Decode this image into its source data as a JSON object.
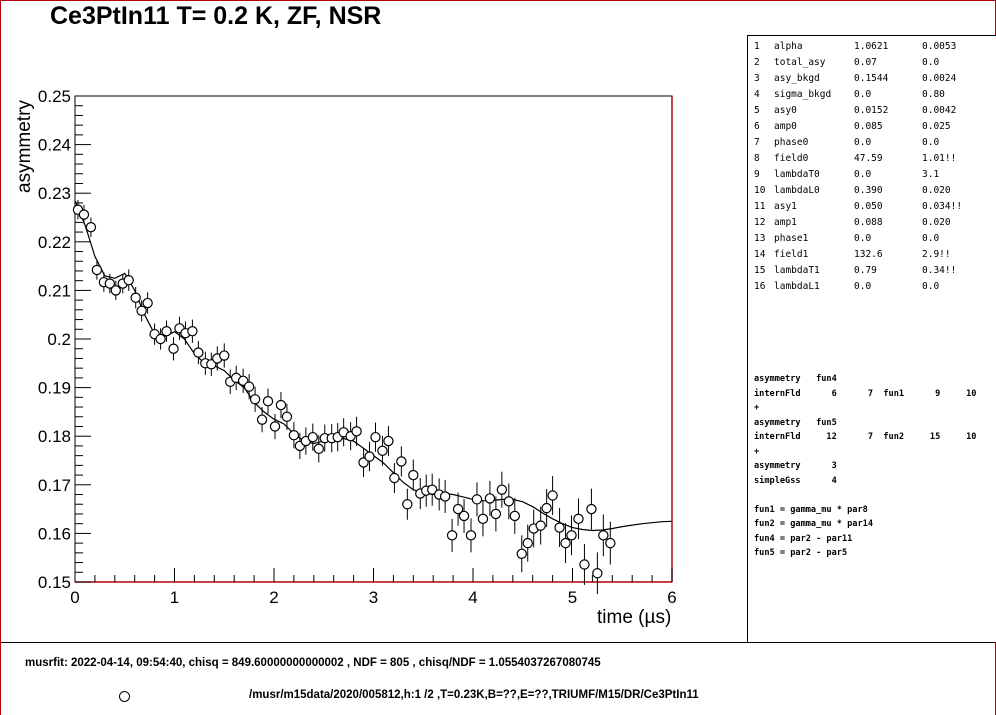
{
  "title": "Ce3PtIn11 T= 0.2 K, ZF, NSR",
  "chart_data": {
    "type": "scatter",
    "xlabel": "time (µs)",
    "ylabel": "asymmetry",
    "xlim": [
      0,
      6
    ],
    "ylim": [
      0.15,
      0.25
    ],
    "xticks": [
      "0",
      "1",
      "2",
      "3",
      "4",
      "5",
      "6"
    ],
    "yticks": [
      "0.15",
      "0.16",
      "0.17",
      "0.18",
      "0.19",
      "0.2",
      "0.21",
      "0.22",
      "0.23",
      "0.24",
      "0.25"
    ],
    "series": [
      {
        "name": "/musr/m15data/2020/005812,h:1 /2 ,T=0.23K,B=??,E=??,TRIUMF/M15/DR/Ce3PtIn11",
        "points": [
          {
            "x": 0.03,
            "y": 0.2266,
            "err": 0.002
          },
          {
            "x": 0.09,
            "y": 0.2256,
            "err": 0.002
          },
          {
            "x": 0.16,
            "y": 0.223,
            "err": 0.002
          },
          {
            "x": 0.22,
            "y": 0.2142,
            "err": 0.002
          },
          {
            "x": 0.29,
            "y": 0.2117,
            "err": 0.002
          },
          {
            "x": 0.35,
            "y": 0.2114,
            "err": 0.002
          },
          {
            "x": 0.41,
            "y": 0.21,
            "err": 0.002
          },
          {
            "x": 0.48,
            "y": 0.2114,
            "err": 0.002
          },
          {
            "x": 0.54,
            "y": 0.2121,
            "err": 0.0022
          },
          {
            "x": 0.61,
            "y": 0.2085,
            "err": 0.0022
          },
          {
            "x": 0.67,
            "y": 0.2058,
            "err": 0.0022
          },
          {
            "x": 0.73,
            "y": 0.2074,
            "err": 0.0022
          },
          {
            "x": 0.8,
            "y": 0.201,
            "err": 0.0022
          },
          {
            "x": 0.86,
            "y": 0.2,
            "err": 0.0022
          },
          {
            "x": 0.92,
            "y": 0.2016,
            "err": 0.0022
          },
          {
            "x": 0.99,
            "y": 0.198,
            "err": 0.0024
          },
          {
            "x": 1.05,
            "y": 0.2022,
            "err": 0.0024
          },
          {
            "x": 1.11,
            "y": 0.2012,
            "err": 0.0024
          },
          {
            "x": 1.18,
            "y": 0.2016,
            "err": 0.0024
          },
          {
            "x": 1.24,
            "y": 0.1972,
            "err": 0.0024
          },
          {
            "x": 1.31,
            "y": 0.195,
            "err": 0.0024
          },
          {
            "x": 1.37,
            "y": 0.1948,
            "err": 0.0024
          },
          {
            "x": 1.43,
            "y": 0.196,
            "err": 0.0025
          },
          {
            "x": 1.5,
            "y": 0.1966,
            "err": 0.0025
          },
          {
            "x": 1.56,
            "y": 0.1912,
            "err": 0.0025
          },
          {
            "x": 1.62,
            "y": 0.192,
            "err": 0.0025
          },
          {
            "x": 1.69,
            "y": 0.1914,
            "err": 0.0025
          },
          {
            "x": 1.75,
            "y": 0.1902,
            "err": 0.0026
          },
          {
            "x": 1.81,
            "y": 0.1876,
            "err": 0.0026
          },
          {
            "x": 1.88,
            "y": 0.1834,
            "err": 0.0026
          },
          {
            "x": 1.94,
            "y": 0.1872,
            "err": 0.0026
          },
          {
            "x": 2.01,
            "y": 0.182,
            "err": 0.0026
          },
          {
            "x": 2.07,
            "y": 0.1864,
            "err": 0.0027
          },
          {
            "x": 2.13,
            "y": 0.184,
            "err": 0.0027
          },
          {
            "x": 2.2,
            "y": 0.1802,
            "err": 0.0027
          },
          {
            "x": 2.26,
            "y": 0.178,
            "err": 0.0027
          },
          {
            "x": 2.32,
            "y": 0.179,
            "err": 0.0028
          },
          {
            "x": 2.39,
            "y": 0.1798,
            "err": 0.0028
          },
          {
            "x": 2.45,
            "y": 0.1774,
            "err": 0.0028
          },
          {
            "x": 2.51,
            "y": 0.1796,
            "err": 0.0028
          },
          {
            "x": 2.58,
            "y": 0.1796,
            "err": 0.0029
          },
          {
            "x": 2.64,
            "y": 0.1798,
            "err": 0.0029
          },
          {
            "x": 2.7,
            "y": 0.1808,
            "err": 0.0029
          },
          {
            "x": 2.77,
            "y": 0.18,
            "err": 0.0029
          },
          {
            "x": 2.83,
            "y": 0.181,
            "err": 0.003
          },
          {
            "x": 2.9,
            "y": 0.1746,
            "err": 0.003
          },
          {
            "x": 2.96,
            "y": 0.1758,
            "err": 0.003
          },
          {
            "x": 3.02,
            "y": 0.1798,
            "err": 0.003
          },
          {
            "x": 3.09,
            "y": 0.177,
            "err": 0.0031
          },
          {
            "x": 3.15,
            "y": 0.179,
            "err": 0.0031
          },
          {
            "x": 3.21,
            "y": 0.1714,
            "err": 0.0031
          },
          {
            "x": 3.28,
            "y": 0.1748,
            "err": 0.0031
          },
          {
            "x": 3.34,
            "y": 0.166,
            "err": 0.0032
          },
          {
            "x": 3.4,
            "y": 0.172,
            "err": 0.0032
          },
          {
            "x": 3.47,
            "y": 0.1682,
            "err": 0.0032
          },
          {
            "x": 3.53,
            "y": 0.1688,
            "err": 0.0033
          },
          {
            "x": 3.59,
            "y": 0.169,
            "err": 0.0033
          },
          {
            "x": 3.66,
            "y": 0.168,
            "err": 0.0033
          },
          {
            "x": 3.72,
            "y": 0.1676,
            "err": 0.0034
          },
          {
            "x": 3.79,
            "y": 0.1596,
            "err": 0.0034
          },
          {
            "x": 3.85,
            "y": 0.165,
            "err": 0.0034
          },
          {
            "x": 3.91,
            "y": 0.1636,
            "err": 0.0035
          },
          {
            "x": 3.98,
            "y": 0.1596,
            "err": 0.0035
          },
          {
            "x": 4.04,
            "y": 0.167,
            "err": 0.0035
          },
          {
            "x": 4.1,
            "y": 0.163,
            "err": 0.0036
          },
          {
            "x": 4.17,
            "y": 0.1672,
            "err": 0.0036
          },
          {
            "x": 4.23,
            "y": 0.164,
            "err": 0.0036
          },
          {
            "x": 4.29,
            "y": 0.169,
            "err": 0.0037
          },
          {
            "x": 4.36,
            "y": 0.1666,
            "err": 0.0037
          },
          {
            "x": 4.42,
            "y": 0.1636,
            "err": 0.0037
          },
          {
            "x": 4.49,
            "y": 0.1558,
            "err": 0.0038
          },
          {
            "x": 4.55,
            "y": 0.158,
            "err": 0.0038
          },
          {
            "x": 4.61,
            "y": 0.161,
            "err": 0.0039
          },
          {
            "x": 4.68,
            "y": 0.1616,
            "err": 0.0039
          },
          {
            "x": 4.74,
            "y": 0.1652,
            "err": 0.0039
          },
          {
            "x": 4.8,
            "y": 0.1678,
            "err": 0.004
          },
          {
            "x": 4.87,
            "y": 0.1612,
            "err": 0.004
          },
          {
            "x": 4.93,
            "y": 0.158,
            "err": 0.0041
          },
          {
            "x": 4.99,
            "y": 0.1596,
            "err": 0.0041
          },
          {
            "x": 5.06,
            "y": 0.163,
            "err": 0.0042
          },
          {
            "x": 5.12,
            "y": 0.1536,
            "err": 0.0042
          },
          {
            "x": 5.19,
            "y": 0.165,
            "err": 0.0042
          },
          {
            "x": 5.25,
            "y": 0.1518,
            "err": 0.0043
          },
          {
            "x": 5.31,
            "y": 0.1596,
            "err": 0.0043
          },
          {
            "x": 5.38,
            "y": 0.158,
            "err": 0.0044
          }
        ]
      },
      {
        "name": "fit",
        "curve": [
          [
            0.0,
            0.2285
          ],
          [
            0.1,
            0.2235
          ],
          [
            0.2,
            0.217
          ],
          [
            0.3,
            0.213
          ],
          [
            0.4,
            0.2125
          ],
          [
            0.5,
            0.2135
          ],
          [
            0.6,
            0.21
          ],
          [
            0.7,
            0.205
          ],
          [
            0.8,
            0.201
          ],
          [
            0.9,
            0.2005
          ],
          [
            1.0,
            0.2015
          ],
          [
            1.1,
            0.2
          ],
          [
            1.2,
            0.197
          ],
          [
            1.3,
            0.195
          ],
          [
            1.4,
            0.1945
          ],
          [
            1.5,
            0.1935
          ],
          [
            1.6,
            0.1915
          ],
          [
            1.7,
            0.19
          ],
          [
            1.8,
            0.187
          ],
          [
            1.9,
            0.185
          ],
          [
            2.0,
            0.1835
          ],
          [
            2.1,
            0.1825
          ],
          [
            2.2,
            0.1805
          ],
          [
            2.3,
            0.179
          ],
          [
            2.4,
            0.1785
          ],
          [
            2.5,
            0.179
          ],
          [
            2.6,
            0.1792
          ],
          [
            2.7,
            0.1795
          ],
          [
            2.8,
            0.179
          ],
          [
            2.9,
            0.1775
          ],
          [
            3.0,
            0.176
          ],
          [
            3.1,
            0.1745
          ],
          [
            3.2,
            0.1725
          ],
          [
            3.3,
            0.1705
          ],
          [
            3.4,
            0.169
          ],
          [
            3.5,
            0.1683
          ],
          [
            3.6,
            0.168
          ],
          [
            3.7,
            0.1682
          ],
          [
            3.8,
            0.168
          ],
          [
            3.9,
            0.1675
          ],
          [
            4.0,
            0.167
          ],
          [
            4.1,
            0.1667
          ],
          [
            4.2,
            0.1668
          ],
          [
            4.3,
            0.167
          ],
          [
            4.4,
            0.167
          ],
          [
            4.5,
            0.1665
          ],
          [
            4.6,
            0.1655
          ],
          [
            4.7,
            0.1642
          ],
          [
            4.8,
            0.163
          ],
          [
            4.9,
            0.162
          ],
          [
            5.0,
            0.1612
          ],
          [
            5.1,
            0.1608
          ],
          [
            5.2,
            0.1606
          ],
          [
            5.3,
            0.1607
          ],
          [
            5.4,
            0.161
          ],
          [
            5.5,
            0.1614
          ],
          [
            5.6,
            0.1617
          ],
          [
            5.7,
            0.162
          ],
          [
            5.8,
            0.1622
          ],
          [
            5.9,
            0.1624
          ],
          [
            6.0,
            0.1625
          ]
        ]
      }
    ],
    "legend_position": "bottom",
    "grid": false
  },
  "parameters": [
    {
      "no": "1",
      "name": "alpha",
      "value": "1.0621",
      "error": "0.0053"
    },
    {
      "no": "2",
      "name": "total_asy",
      "value": "0.07",
      "error": "0.0"
    },
    {
      "no": "3",
      "name": "asy_bkgd",
      "value": "0.1544",
      "error": "0.0024"
    },
    {
      "no": "4",
      "name": "sigma_bkgd",
      "value": "0.0",
      "error": "0.80"
    },
    {
      "no": "5",
      "name": "asy0",
      "value": "0.0152",
      "error": "0.0042"
    },
    {
      "no": "6",
      "name": "amp0",
      "value": "0.085",
      "error": "0.025"
    },
    {
      "no": "7",
      "name": "phase0",
      "value": "0.0",
      "error": "0.0"
    },
    {
      "no": "8",
      "name": "field0",
      "value": "47.59",
      "error": "1.01!!"
    },
    {
      "no": "9",
      "name": "lambdaT0",
      "value": "0.0",
      "error": "3.1"
    },
    {
      "no": "10",
      "name": "lambdaL0",
      "value": "0.390",
      "error": "0.020"
    },
    {
      "no": "11",
      "name": "asy1",
      "value": "0.050",
      "error": "0.034!!"
    },
    {
      "no": "12",
      "name": "amp1",
      "value": "0.088",
      "error": "0.020"
    },
    {
      "no": "13",
      "name": "phase1",
      "value": "0.0",
      "error": "0.0"
    },
    {
      "no": "14",
      "name": "field1",
      "value": "132.6",
      "error": "2.9!!"
    },
    {
      "no": "15",
      "name": "lambdaT1",
      "value": "0.79",
      "error": "0.34!!"
    },
    {
      "no": "16",
      "name": "lambdaL1",
      "value": "0.0",
      "error": "0.0"
    }
  ],
  "theory_lines": [
    "asymmetry   fun4",
    "internFld      6      7  fun1      9     10",
    "+",
    "asymmetry   fun5",
    "internFld     12      7  fun2     15     10",
    "+",
    "asymmetry      3",
    "simpleGss      4",
    "",
    "fun1 = gamma_mu * par8",
    "fun2 = gamma_mu * par14",
    "fun4 = par2 - par11",
    "fun5 = par2 - par5"
  ],
  "fit_info": "musrfit: 2022-04-14, 09:54:40, chisq = 849.60000000000002 , NDF = 805 , chisq/NDF = 1.0554037267080745",
  "legend_text": "/musr/m15data/2020/005812,h:1 /2 ,T=0.23K,B=??,E=??,TRIUMF/M15/DR/Ce3PtIn11"
}
